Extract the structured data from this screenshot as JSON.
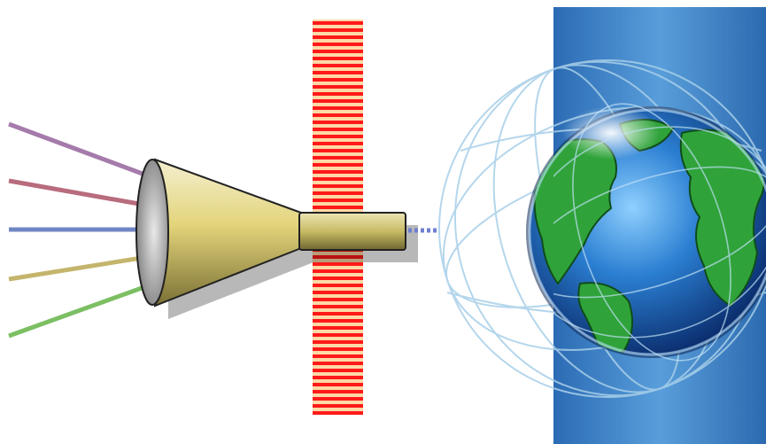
{
  "diagram": {
    "input_lines": [
      {
        "color": "#a57bab"
      },
      {
        "color": "#b86c7d"
      },
      {
        "color": "#7186c4"
      },
      {
        "color": "#c4b56d"
      },
      {
        "color": "#7cbf63"
      }
    ],
    "funnel": {
      "body_color": "#e6d98a",
      "tube_color": "#c9bd68",
      "mouth_color": "#9a9a9a"
    },
    "barrier": {
      "stripe_color_a": "#ff1a1a",
      "stripe_color_b": "#ffd7a0"
    },
    "output_link": {
      "color": "#6f7fd0",
      "style": "dotted"
    },
    "globe": {
      "ocean_color": "#1e62b5",
      "land_color": "#2fa33a",
      "grid_color": "#9ec8e6",
      "panel_color": "#2a78c7"
    }
  }
}
